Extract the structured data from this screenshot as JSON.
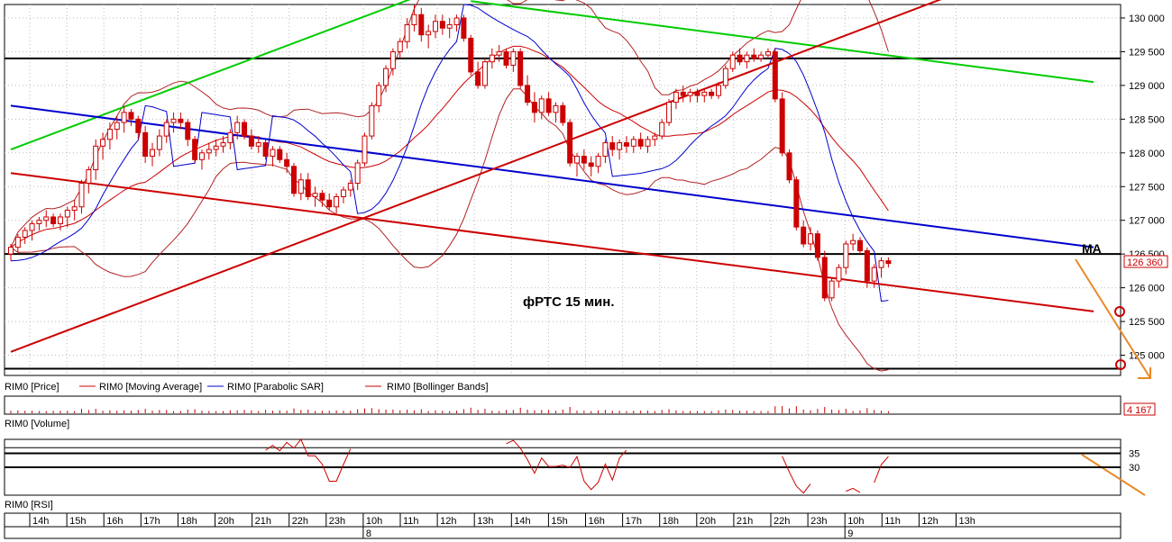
{
  "chart_data": {
    "type": "candlestick",
    "title": "фРТС   15 мин.",
    "panels": {
      "price": {
        "ylim": [
          124700,
          130200
        ],
        "yticks": [
          "130 000",
          "129 500",
          "129 000",
          "128 500",
          "128 000",
          "127 500",
          "127 000",
          "126 500",
          "126 000",
          "125 500",
          "125 000"
        ],
        "ytick_values": [
          130000,
          129500,
          129000,
          128500,
          128000,
          127500,
          127000,
          126500,
          126000,
          125500,
          125000
        ],
        "last_price_label": "126 360",
        "last_price": 126360,
        "legend": [
          "RIM0 [Price]",
          "RIM0 [Moving Average]",
          "RIM0 [Parabolic SAR]",
          "RIM0 [Bollinger Bands]"
        ],
        "annotation": "MA",
        "horizontal_levels": [
          129400,
          126500,
          124800
        ],
        "trendlines": [
          {
            "color": "#00cc00",
            "name": "resistance-upper-1",
            "p1": [
              0,
              128050
            ],
            "p2": [
              57,
              130300
            ]
          },
          {
            "color": "#00cc00",
            "name": "resistance-upper-2",
            "p1": [
              65,
              130250
            ],
            "p2": [
              153,
              129050
            ]
          },
          {
            "color": "#0000cc",
            "name": "channel-middle",
            "p1": [
              0,
              128700
            ],
            "p2": [
              153,
              126600
            ]
          },
          {
            "color": "#cc0000",
            "name": "channel-lower",
            "p1": [
              0,
              127700
            ],
            "p2": [
              153,
              125650
            ]
          },
          {
            "color": "#cc0000",
            "name": "support-rising",
            "p1": [
              0,
              125050
            ],
            "p2": [
              132,
              130300
            ]
          }
        ],
        "candles": [
          [
            126500,
            126650,
            126400,
            126600
          ],
          [
            126600,
            126800,
            126500,
            126750
          ],
          [
            126750,
            126900,
            126650,
            126850
          ],
          [
            126850,
            127000,
            126700,
            126950
          ],
          [
            126950,
            127050,
            126850,
            127000
          ],
          [
            127000,
            127150,
            126900,
            127050
          ],
          [
            127050,
            127100,
            126900,
            126950
          ],
          [
            126950,
            127100,
            126850,
            127050
          ],
          [
            127050,
            127200,
            126900,
            127150
          ],
          [
            127150,
            127300,
            127000,
            127200
          ],
          [
            127200,
            127600,
            127100,
            127550
          ],
          [
            127550,
            127800,
            127400,
            127750
          ],
          [
            127750,
            128200,
            127600,
            128100
          ],
          [
            128100,
            128300,
            127900,
            128200
          ],
          [
            128200,
            128450,
            128050,
            128350
          ],
          [
            128350,
            128550,
            128200,
            128450
          ],
          [
            128450,
            128700,
            128300,
            128600
          ],
          [
            128600,
            128650,
            128400,
            128500
          ],
          [
            128500,
            128550,
            128200,
            128300
          ],
          [
            128300,
            128400,
            127850,
            127950
          ],
          [
            127950,
            128150,
            127800,
            128050
          ],
          [
            128050,
            128350,
            127950,
            128250
          ],
          [
            128250,
            128500,
            128150,
            128450
          ],
          [
            128450,
            128600,
            128300,
            128500
          ],
          [
            128500,
            128600,
            128350,
            128450
          ],
          [
            128450,
            128500,
            128100,
            128200
          ],
          [
            128200,
            128250,
            127850,
            127900
          ],
          [
            127900,
            128050,
            127750,
            128000
          ],
          [
            128000,
            128150,
            127900,
            128050
          ],
          [
            128050,
            128200,
            127950,
            128100
          ],
          [
            128100,
            128250,
            128000,
            128150
          ],
          [
            128150,
            128350,
            128050,
            128300
          ],
          [
            128300,
            128550,
            128200,
            128450
          ],
          [
            128450,
            128500,
            128200,
            128250
          ],
          [
            128250,
            128350,
            128050,
            128100
          ],
          [
            128100,
            128250,
            128000,
            128150
          ],
          [
            128150,
            128200,
            127900,
            127950
          ],
          [
            127950,
            128100,
            127800,
            128050
          ],
          [
            128050,
            128100,
            127850,
            127900
          ],
          [
            127900,
            128000,
            127700,
            127800
          ],
          [
            127800,
            127850,
            127350,
            127400
          ],
          [
            127400,
            127700,
            127300,
            127600
          ],
          [
            127600,
            127700,
            127300,
            127350
          ],
          [
            127350,
            127500,
            127200,
            127400
          ],
          [
            127400,
            127450,
            127200,
            127300
          ],
          [
            127300,
            127400,
            127150,
            127200
          ],
          [
            127200,
            127400,
            127100,
            127350
          ],
          [
            127350,
            127500,
            127250,
            127450
          ],
          [
            127450,
            127600,
            127350,
            127550
          ],
          [
            127550,
            127900,
            127450,
            127850
          ],
          [
            127850,
            128300,
            127800,
            128250
          ],
          [
            128250,
            128750,
            128200,
            128700
          ],
          [
            128700,
            129050,
            128600,
            129000
          ],
          [
            129000,
            129300,
            128900,
            129250
          ],
          [
            129250,
            129550,
            129150,
            129500
          ],
          [
            129500,
            129700,
            129400,
            129650
          ],
          [
            129650,
            130000,
            129550,
            129900
          ],
          [
            129900,
            130200,
            129800,
            130050
          ],
          [
            130050,
            130150,
            129650,
            129750
          ],
          [
            129750,
            129900,
            129550,
            129800
          ],
          [
            129800,
            130050,
            129700,
            129950
          ],
          [
            129950,
            130050,
            129750,
            129850
          ],
          [
            129850,
            130000,
            129700,
            129900
          ],
          [
            129900,
            130050,
            129800,
            130000
          ],
          [
            130000,
            130050,
            129650,
            129700
          ],
          [
            129700,
            129750,
            129150,
            129200
          ],
          [
            129200,
            129350,
            128950,
            129000
          ],
          [
            129000,
            129400,
            128950,
            129350
          ],
          [
            129350,
            129550,
            129250,
            129450
          ],
          [
            129450,
            129600,
            129350,
            129500
          ],
          [
            129500,
            129550,
            129250,
            129300
          ],
          [
            129300,
            129550,
            129200,
            129500
          ],
          [
            129500,
            129550,
            128950,
            129000
          ],
          [
            129000,
            129150,
            128700,
            128750
          ],
          [
            128750,
            128900,
            128450,
            128600
          ],
          [
            128600,
            128850,
            128500,
            128800
          ],
          [
            128800,
            128900,
            128550,
            128600
          ],
          [
            128600,
            128750,
            128450,
            128700
          ],
          [
            128700,
            128750,
            128400,
            128450
          ],
          [
            128450,
            128500,
            127800,
            127850
          ],
          [
            127850,
            128000,
            127650,
            127950
          ],
          [
            127950,
            128050,
            127750,
            127850
          ],
          [
            127850,
            127950,
            127650,
            127800
          ],
          [
            127800,
            128000,
            127700,
            127950
          ],
          [
            127950,
            128200,
            127850,
            128150
          ],
          [
            128150,
            128250,
            127950,
            128050
          ],
          [
            128050,
            128200,
            127900,
            128150
          ],
          [
            128150,
            128250,
            128000,
            128100
          ],
          [
            128100,
            128250,
            128000,
            128200
          ],
          [
            128200,
            128300,
            128050,
            128100
          ],
          [
            128100,
            128250,
            128000,
            128200
          ],
          [
            128200,
            128300,
            128100,
            128250
          ],
          [
            128250,
            128500,
            128200,
            128450
          ],
          [
            128450,
            128800,
            128400,
            128750
          ],
          [
            128750,
            128950,
            128650,
            128900
          ],
          [
            128900,
            129000,
            128750,
            128850
          ],
          [
            128850,
            128950,
            128750,
            128900
          ],
          [
            128900,
            128950,
            128750,
            128850
          ],
          [
            128850,
            128950,
            128750,
            128900
          ],
          [
            128900,
            128950,
            128800,
            128850
          ],
          [
            128850,
            129050,
            128800,
            129000
          ],
          [
            129000,
            129300,
            128950,
            129250
          ],
          [
            129250,
            129500,
            129200,
            129450
          ],
          [
            129450,
            129550,
            129300,
            129350
          ],
          [
            129350,
            129500,
            129250,
            129450
          ],
          [
            129450,
            129550,
            129350,
            129400
          ],
          [
            129400,
            129500,
            129350,
            129450
          ],
          [
            129450,
            129550,
            129400,
            129500
          ],
          [
            129500,
            129550,
            128750,
            128800
          ],
          [
            128800,
            128900,
            127950,
            128000
          ],
          [
            128000,
            128050,
            127550,
            127600
          ],
          [
            127600,
            127650,
            126850,
            126900
          ],
          [
            126900,
            127000,
            126600,
            126650
          ],
          [
            126650,
            126900,
            126550,
            126800
          ],
          [
            126800,
            126850,
            126400,
            126450
          ],
          [
            126450,
            126550,
            125800,
            125850
          ],
          [
            125850,
            126150,
            125800,
            126100
          ],
          [
            126100,
            126350,
            126000,
            126300
          ],
          [
            126300,
            126700,
            126200,
            126650
          ],
          [
            126650,
            126800,
            126550,
            126700
          ],
          [
            126700,
            126750,
            126500,
            126550
          ],
          [
            126550,
            126600,
            126000,
            126100
          ],
          [
            126100,
            126350,
            126000,
            126300
          ],
          [
            126300,
            126450,
            126150,
            126400
          ],
          [
            126400,
            126450,
            126300,
            126360
          ]
        ]
      },
      "volume": {
        "legend": "RIM0 [Volume]",
        "last_value_label": "4 167"
      },
      "rsi": {
        "legend": "RIM0 [RSI]",
        "yticks": [
          "35",
          "30"
        ],
        "levels": [
          35,
          30
        ]
      }
    },
    "time_axis": {
      "labels": [
        "14h",
        "15h",
        "16h",
        "17h",
        "18h",
        "20h",
        "21h",
        "22h",
        "23h",
        "10h",
        "11h",
        "12h",
        "13h",
        "14h",
        "15h",
        "16h",
        "17h",
        "18h",
        "20h",
        "21h",
        "22h",
        "23h",
        "10h",
        "11h",
        "12h",
        "13h"
      ],
      "day_labels": [
        {
          "label": "8",
          "at_index": 9
        },
        {
          "label": "9",
          "at_index": 22
        }
      ]
    }
  }
}
